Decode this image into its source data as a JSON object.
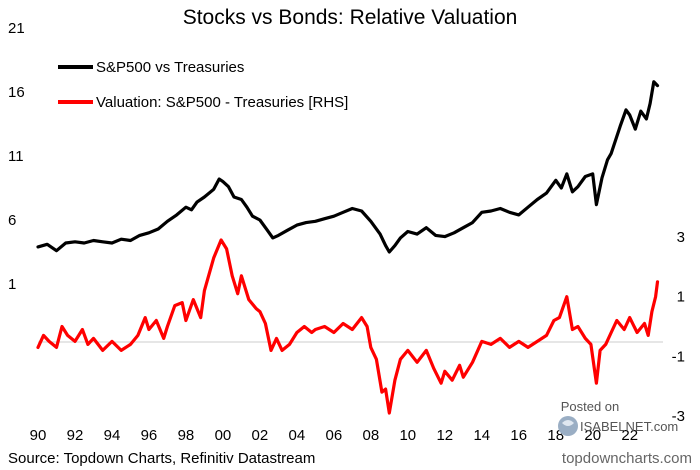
{
  "chart_data": {
    "type": "line",
    "title": "Stocks vs Bonds: Relative Valuation",
    "left_axis": {
      "ticks": [
        1,
        6,
        11,
        16,
        21
      ],
      "ylim": [
        1,
        21
      ]
    },
    "right_axis": {
      "ticks": [
        -3,
        -1,
        1,
        3
      ],
      "ylim": [
        -3,
        3
      ]
    },
    "x_ticks": [
      "90",
      "92",
      "94",
      "96",
      "98",
      "00",
      "02",
      "04",
      "06",
      "08",
      "10",
      "12",
      "14",
      "16",
      "18",
      "20",
      "22"
    ],
    "xlim": [
      1990,
      2023.8
    ],
    "legend_position": "top-left",
    "series": [
      {
        "name": "S&P500 vs Treasuries",
        "axis": "left",
        "color": "#000000",
        "points": [
          [
            1990.0,
            3.9
          ],
          [
            1990.5,
            4.1
          ],
          [
            1991.0,
            3.6
          ],
          [
            1991.5,
            4.2
          ],
          [
            1992.0,
            4.3
          ],
          [
            1992.5,
            4.2
          ],
          [
            1993.0,
            4.4
          ],
          [
            1993.5,
            4.3
          ],
          [
            1994.0,
            4.2
          ],
          [
            1994.5,
            4.5
          ],
          [
            1995.0,
            4.4
          ],
          [
            1995.5,
            4.8
          ],
          [
            1996.0,
            5.0
          ],
          [
            1996.5,
            5.3
          ],
          [
            1997.0,
            5.9
          ],
          [
            1997.5,
            6.4
          ],
          [
            1998.0,
            7.0
          ],
          [
            1998.3,
            6.8
          ],
          [
            1998.6,
            7.4
          ],
          [
            1999.0,
            7.8
          ],
          [
            1999.5,
            8.4
          ],
          [
            1999.8,
            9.2
          ],
          [
            2000.0,
            9.0
          ],
          [
            2000.3,
            8.6
          ],
          [
            2000.6,
            7.8
          ],
          [
            2001.0,
            7.6
          ],
          [
            2001.3,
            7.0
          ],
          [
            2001.6,
            6.3
          ],
          [
            2002.0,
            6.0
          ],
          [
            2002.4,
            5.2
          ],
          [
            2002.7,
            4.6
          ],
          [
            2003.0,
            4.8
          ],
          [
            2003.5,
            5.2
          ],
          [
            2004.0,
            5.6
          ],
          [
            2004.5,
            5.8
          ],
          [
            2005.0,
            5.9
          ],
          [
            2005.5,
            6.1
          ],
          [
            2006.0,
            6.3
          ],
          [
            2006.5,
            6.6
          ],
          [
            2007.0,
            6.9
          ],
          [
            2007.5,
            6.7
          ],
          [
            2008.0,
            5.9
          ],
          [
            2008.5,
            4.9
          ],
          [
            2008.8,
            4.0
          ],
          [
            2009.0,
            3.5
          ],
          [
            2009.3,
            4.0
          ],
          [
            2009.6,
            4.6
          ],
          [
            2010.0,
            5.1
          ],
          [
            2010.5,
            4.9
          ],
          [
            2011.0,
            5.4
          ],
          [
            2011.5,
            4.8
          ],
          [
            2012.0,
            4.7
          ],
          [
            2012.5,
            5.0
          ],
          [
            2013.0,
            5.4
          ],
          [
            2013.5,
            5.8
          ],
          [
            2014.0,
            6.6
          ],
          [
            2014.5,
            6.7
          ],
          [
            2015.0,
            6.9
          ],
          [
            2015.5,
            6.6
          ],
          [
            2016.0,
            6.4
          ],
          [
            2016.5,
            7.0
          ],
          [
            2017.0,
            7.6
          ],
          [
            2017.5,
            8.1
          ],
          [
            2018.0,
            9.1
          ],
          [
            2018.3,
            8.5
          ],
          [
            2018.6,
            9.6
          ],
          [
            2018.9,
            8.2
          ],
          [
            2019.2,
            8.6
          ],
          [
            2019.6,
            9.4
          ],
          [
            2020.0,
            9.6
          ],
          [
            2020.2,
            7.2
          ],
          [
            2020.5,
            9.3
          ],
          [
            2020.8,
            10.7
          ],
          [
            2021.0,
            11.2
          ],
          [
            2021.5,
            13.4
          ],
          [
            2021.8,
            14.6
          ],
          [
            2022.0,
            14.2
          ],
          [
            2022.3,
            13.1
          ],
          [
            2022.6,
            14.5
          ],
          [
            2022.9,
            13.9
          ],
          [
            2023.1,
            15.1
          ],
          [
            2023.3,
            16.8
          ],
          [
            2023.5,
            16.5
          ]
        ]
      },
      {
        "name": "Valuation: S&P500 - Treasuries [RHS]",
        "axis": "right",
        "color": "#ff0000",
        "points": [
          [
            1990.0,
            -0.7
          ],
          [
            1990.3,
            -0.3
          ],
          [
            1990.6,
            -0.5
          ],
          [
            1991.0,
            -0.7
          ],
          [
            1991.3,
            0.0
          ],
          [
            1991.6,
            -0.3
          ],
          [
            1992.0,
            -0.5
          ],
          [
            1992.4,
            -0.1
          ],
          [
            1992.7,
            -0.6
          ],
          [
            1993.0,
            -0.4
          ],
          [
            1993.5,
            -0.8
          ],
          [
            1994.0,
            -0.5
          ],
          [
            1994.5,
            -0.8
          ],
          [
            1995.0,
            -0.6
          ],
          [
            1995.4,
            -0.3
          ],
          [
            1995.8,
            0.3
          ],
          [
            1996.0,
            -0.1
          ],
          [
            1996.4,
            0.2
          ],
          [
            1996.8,
            -0.4
          ],
          [
            1997.0,
            0.0
          ],
          [
            1997.4,
            0.7
          ],
          [
            1997.8,
            0.8
          ],
          [
            1998.0,
            0.2
          ],
          [
            1998.4,
            0.9
          ],
          [
            1998.8,
            0.3
          ],
          [
            1999.0,
            1.2
          ],
          [
            1999.5,
            2.3
          ],
          [
            1999.9,
            2.9
          ],
          [
            2000.2,
            2.6
          ],
          [
            2000.5,
            1.7
          ],
          [
            2000.8,
            1.1
          ],
          [
            2001.0,
            1.7
          ],
          [
            2001.4,
            0.9
          ],
          [
            2001.8,
            0.6
          ],
          [
            2002.0,
            0.5
          ],
          [
            2002.3,
            0.1
          ],
          [
            2002.6,
            -0.8
          ],
          [
            2002.9,
            -0.4
          ],
          [
            2003.2,
            -0.8
          ],
          [
            2003.6,
            -0.6
          ],
          [
            2004.0,
            -0.2
          ],
          [
            2004.4,
            0.0
          ],
          [
            2004.8,
            -0.2
          ],
          [
            2005.0,
            -0.1
          ],
          [
            2005.5,
            0.0
          ],
          [
            2006.0,
            -0.2
          ],
          [
            2006.5,
            0.1
          ],
          [
            2007.0,
            -0.1
          ],
          [
            2007.5,
            0.3
          ],
          [
            2007.8,
            0.0
          ],
          [
            2008.0,
            -0.7
          ],
          [
            2008.3,
            -1.1
          ],
          [
            2008.6,
            -2.2
          ],
          [
            2008.8,
            -2.1
          ],
          [
            2009.0,
            -2.9
          ],
          [
            2009.3,
            -1.8
          ],
          [
            2009.6,
            -1.1
          ],
          [
            2010.0,
            -0.8
          ],
          [
            2010.5,
            -1.2
          ],
          [
            2011.0,
            -0.8
          ],
          [
            2011.4,
            -1.4
          ],
          [
            2011.8,
            -1.9
          ],
          [
            2012.0,
            -1.5
          ],
          [
            2012.4,
            -1.8
          ],
          [
            2012.8,
            -1.3
          ],
          [
            2013.0,
            -1.7
          ],
          [
            2013.5,
            -1.2
          ],
          [
            2014.0,
            -0.5
          ],
          [
            2014.5,
            -0.6
          ],
          [
            2015.0,
            -0.4
          ],
          [
            2015.5,
            -0.7
          ],
          [
            2016.0,
            -0.5
          ],
          [
            2016.5,
            -0.7
          ],
          [
            2017.0,
            -0.5
          ],
          [
            2017.5,
            -0.3
          ],
          [
            2017.9,
            0.2
          ],
          [
            2018.2,
            0.3
          ],
          [
            2018.6,
            1.0
          ],
          [
            2018.9,
            -0.1
          ],
          [
            2019.2,
            0.0
          ],
          [
            2019.6,
            -0.4
          ],
          [
            2019.9,
            -0.6
          ],
          [
            2020.2,
            -1.9
          ],
          [
            2020.4,
            -0.8
          ],
          [
            2020.7,
            -0.6
          ],
          [
            2021.0,
            -0.2
          ],
          [
            2021.3,
            0.2
          ],
          [
            2021.7,
            -0.1
          ],
          [
            2022.0,
            0.3
          ],
          [
            2022.4,
            -0.2
          ],
          [
            2022.8,
            0.1
          ],
          [
            2023.0,
            -0.3
          ],
          [
            2023.2,
            0.5
          ],
          [
            2023.4,
            1.0
          ],
          [
            2023.5,
            1.5
          ]
        ]
      }
    ]
  },
  "legend": {
    "items": [
      {
        "label": "S&P500 vs Treasuries",
        "color": "#000000"
      },
      {
        "label": "Valuation: S&P500 - Treasuries [RHS]",
        "color": "#ff0000"
      }
    ]
  },
  "footer": {
    "source": "Source: Topdown Charts, Refinitiv Datastream",
    "credit": "topdowncharts.com"
  },
  "watermark": {
    "posted_on": "Posted on",
    "brand": "ISABELNET.com"
  }
}
